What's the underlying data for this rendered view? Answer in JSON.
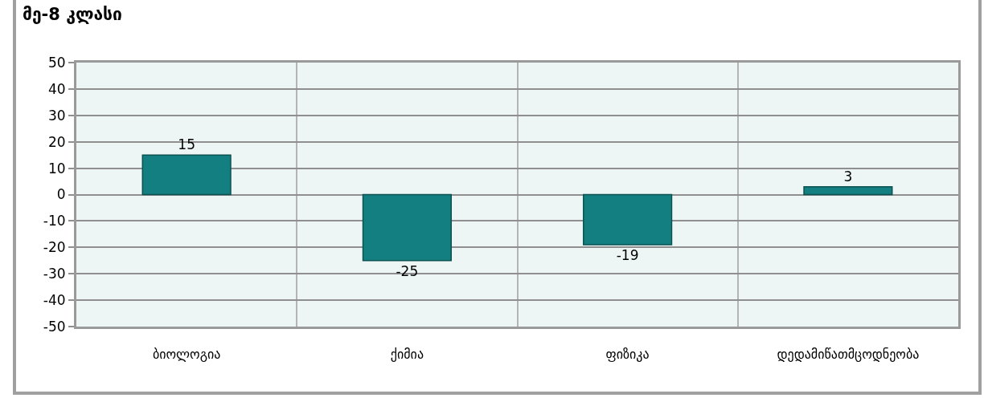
{
  "chart_data": {
    "type": "bar",
    "title": "მე-8 კლასი",
    "categories": [
      "ბიოლოგია",
      "ქიმია",
      "ფიზიკა",
      "დედამიწათმცოდნეობა"
    ],
    "values": [
      15,
      -25,
      -19,
      3
    ],
    "color": "#147f80",
    "ylim": [
      -50,
      50
    ],
    "yticks": [
      -50,
      -40,
      -30,
      -20,
      -10,
      0,
      10,
      20,
      30,
      40,
      50
    ],
    "grid": true,
    "data_labels": true
  }
}
